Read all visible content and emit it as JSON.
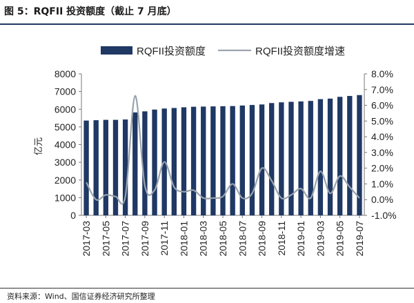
{
  "title": "图 5：RQFII 投资额度（截止 7 月底）",
  "source": "资料来源：Wind、国信证券经济研究所整理",
  "chart_data": {
    "type": "bar+line",
    "y_left_label": "亿元",
    "y_left_range": [
      0,
      8000
    ],
    "y_left_ticks": [
      "0",
      "1000",
      "2000",
      "3000",
      "4000",
      "5000",
      "6000",
      "7000",
      "8000"
    ],
    "y_right_range": [
      -1.0,
      8.0
    ],
    "y_right_ticks": [
      "-1.0%",
      "0.0%",
      "1.0%",
      "2.0%",
      "3.0%",
      "4.0%",
      "5.0%",
      "6.0%",
      "7.0%",
      "8.0%"
    ],
    "x_tick_labels": [
      "2017-03",
      "2017-05",
      "2017-07",
      "2017-09",
      "2017-11",
      "2018-01",
      "2018-03",
      "2018-05",
      "2018-07",
      "2018-09",
      "2018-11",
      "2019-01",
      "2019-03",
      "2019-05",
      "2019-07"
    ],
    "categories": [
      "2017-03",
      "2017-04",
      "2017-05",
      "2017-06",
      "2017-07",
      "2017-08",
      "2017-09",
      "2017-10",
      "2017-11",
      "2017-12",
      "2018-01",
      "2018-02",
      "2018-03",
      "2018-04",
      "2018-05",
      "2018-06",
      "2018-07",
      "2018-08",
      "2018-09",
      "2018-10",
      "2018-11",
      "2018-12",
      "2019-01",
      "2019-02",
      "2019-03",
      "2019-04",
      "2019-05",
      "2019-06",
      "2019-07"
    ],
    "series": [
      {
        "name": "RQFII投资额度",
        "kind": "bar",
        "color": "#1f3864",
        "values": [
          5360,
          5380,
          5400,
          5400,
          5420,
          5820,
          5880,
          5980,
          6040,
          6070,
          6110,
          6140,
          6150,
          6160,
          6170,
          6180,
          6210,
          6240,
          6270,
          6350,
          6390,
          6420,
          6440,
          6470,
          6570,
          6600,
          6700,
          6750,
          6800
        ]
      },
      {
        "name": "RQFII投资额度增速",
        "kind": "line",
        "color": "#9aa3ad",
        "values": [
          1.1,
          0.0,
          0.3,
          0.2,
          0.2,
          6.6,
          0.9,
          0.6,
          2.4,
          0.8,
          0.5,
          0.6,
          0.1,
          0.1,
          0.2,
          1.0,
          0.1,
          0.4,
          2.0,
          1.2,
          0.1,
          0.3,
          0.7,
          0.1,
          1.8,
          0.4,
          1.5,
          0.8,
          0.1
        ]
      }
    ],
    "legend_position": "top"
  }
}
